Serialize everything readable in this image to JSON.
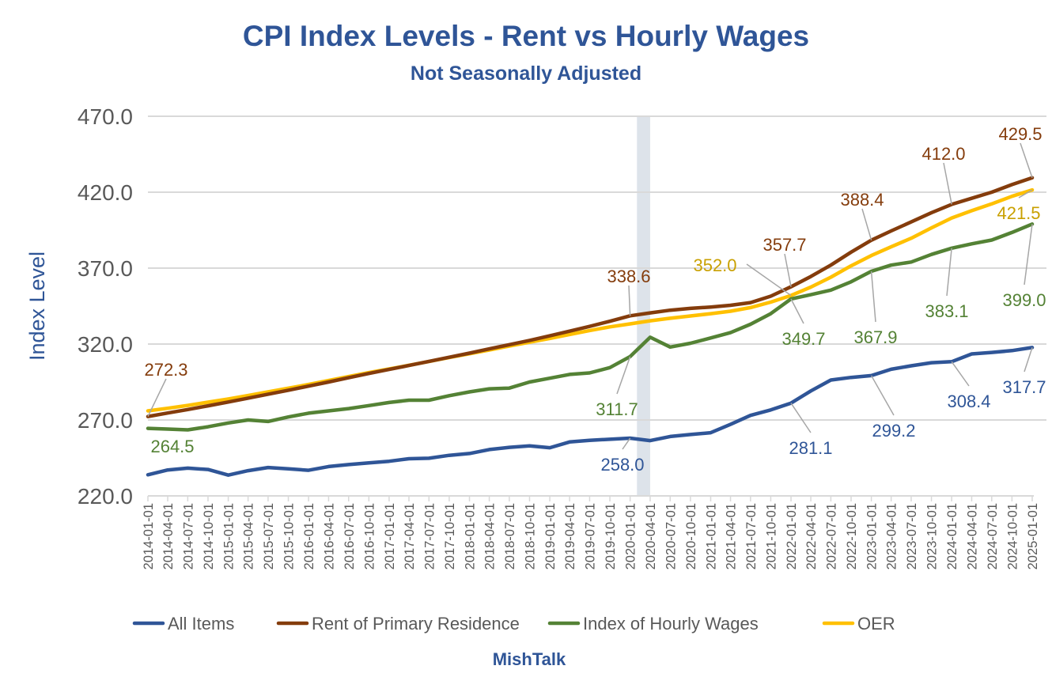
{
  "chart_data": {
    "type": "line",
    "title": "CPI Index Levels - Rent vs Hourly Wages",
    "subtitle": "Not Seasonally Adjusted",
    "ylabel": "Index Level",
    "xlabel": "",
    "source": "MishTalk",
    "ylim": [
      220,
      470
    ],
    "yticks": [
      "220.0",
      "270.0",
      "320.0",
      "370.0",
      "420.0",
      "470.0"
    ],
    "grid": true,
    "legend_position": "bottom",
    "shaded_period": [
      "2020-02-01",
      "2020-04-01"
    ],
    "x": [
      "2014-01-01",
      "2014-04-01",
      "2014-07-01",
      "2014-10-01",
      "2015-01-01",
      "2015-04-01",
      "2015-07-01",
      "2015-10-01",
      "2016-01-01",
      "2016-04-01",
      "2016-07-01",
      "2016-10-01",
      "2017-01-01",
      "2017-04-01",
      "2017-07-01",
      "2017-10-01",
      "2018-01-01",
      "2018-04-01",
      "2018-07-01",
      "2018-10-01",
      "2019-01-01",
      "2019-04-01",
      "2019-07-01",
      "2019-10-01",
      "2020-01-01",
      "2020-04-01",
      "2020-07-01",
      "2020-10-01",
      "2021-01-01",
      "2021-04-01",
      "2021-07-01",
      "2021-10-01",
      "2022-01-01",
      "2022-04-01",
      "2022-07-01",
      "2022-10-01",
      "2023-01-01",
      "2023-04-01",
      "2023-07-01",
      "2023-10-01",
      "2024-01-01",
      "2024-04-01",
      "2024-07-01",
      "2024-10-01",
      "2025-01-01"
    ],
    "series": [
      {
        "name": "All Items",
        "color": "#2F5597",
        "values": [
          233.9,
          237.1,
          238.3,
          237.4,
          233.7,
          236.6,
          238.7,
          237.8,
          236.9,
          239.3,
          240.6,
          241.7,
          242.8,
          244.5,
          244.8,
          246.7,
          247.9,
          250.5,
          252.0,
          252.9,
          251.7,
          255.5,
          256.6,
          257.3,
          258.0,
          256.4,
          259.1,
          260.4,
          261.6,
          267.1,
          273.0,
          276.6,
          281.1,
          289.1,
          296.3,
          298.0,
          299.2,
          303.4,
          305.7,
          307.7,
          308.4,
          313.5,
          314.5,
          315.7,
          317.7
        ]
      },
      {
        "name": "Rent of Primary Residence",
        "color": "#843C0C",
        "values": [
          272.3,
          274.6,
          276.9,
          279.3,
          281.8,
          284.4,
          287.0,
          289.6,
          292.3,
          295.0,
          297.8,
          300.6,
          303.3,
          305.9,
          308.6,
          311.3,
          314.0,
          316.8,
          319.6,
          322.4,
          325.4,
          328.5,
          331.6,
          335.0,
          338.6,
          340.5,
          342.3,
          343.5,
          344.4,
          345.5,
          347.3,
          351.5,
          357.7,
          364.5,
          372.0,
          380.5,
          388.4,
          394.5,
          400.4,
          406.5,
          412.0,
          416.0,
          420.0,
          425.0,
          429.5
        ]
      },
      {
        "name": "Index of Hourly Wages",
        "color": "#548235",
        "values": [
          264.5,
          264.0,
          263.5,
          265.5,
          268.0,
          270.0,
          269.0,
          272.0,
          274.5,
          276.0,
          277.5,
          279.5,
          281.5,
          283.0,
          283.0,
          286.0,
          288.5,
          290.5,
          291.0,
          295.0,
          297.5,
          300.0,
          301.0,
          304.5,
          311.7,
          324.5,
          318.0,
          320.5,
          324.0,
          327.5,
          333.0,
          340.0,
          349.7,
          352.5,
          355.5,
          361.0,
          367.9,
          372.0,
          374.0,
          379.0,
          383.1,
          386.0,
          388.5,
          393.5,
          399.0
        ]
      },
      {
        "name": "OER",
        "color": "#FFC000",
        "values": [
          276.0,
          277.7,
          279.6,
          281.7,
          283.8,
          286.1,
          288.5,
          290.9,
          293.4,
          296.0,
          298.6,
          301.2,
          303.6,
          306.0,
          308.5,
          311.1,
          313.6,
          316.1,
          318.7,
          321.2,
          323.7,
          326.3,
          328.9,
          331.3,
          333.3,
          335.3,
          337.0,
          338.5,
          340.0,
          341.6,
          344.0,
          347.6,
          352.0,
          357.5,
          364.0,
          371.5,
          378.3,
          384.0,
          389.7,
          396.5,
          403.0,
          407.8,
          412.3,
          417.3,
          421.5
        ]
      }
    ],
    "annotations": [
      {
        "series": 1,
        "date": "2014-01-01",
        "label": "272.3",
        "color": "#843C0C"
      },
      {
        "series": 2,
        "date": "2014-01-01",
        "label": "264.5",
        "color": "#548235"
      },
      {
        "series": 2,
        "date": "2020-01-01",
        "label": "311.7",
        "color": "#548235"
      },
      {
        "series": 0,
        "date": "2020-01-01",
        "label": "258.0",
        "color": "#2F5597"
      },
      {
        "series": 1,
        "date": "2020-01-01",
        "label": "338.6",
        "color": "#843C0C"
      },
      {
        "series": 3,
        "date": "2022-01-01",
        "label": "352.0",
        "color": "#C9A000"
      },
      {
        "series": 1,
        "date": "2022-01-01",
        "label": "357.7",
        "color": "#843C0C"
      },
      {
        "series": 2,
        "date": "2022-01-01",
        "label": "349.7",
        "color": "#548235"
      },
      {
        "series": 1,
        "date": "2023-01-01",
        "label": "388.4",
        "color": "#843C0C"
      },
      {
        "series": 2,
        "date": "2023-01-01",
        "label": "367.9",
        "color": "#548235"
      },
      {
        "series": 0,
        "date": "2022-01-01",
        "label": "281.1",
        "color": "#2F5597"
      },
      {
        "series": 0,
        "date": "2023-01-01",
        "label": "299.2",
        "color": "#2F5597"
      },
      {
        "series": 1,
        "date": "2024-01-01",
        "label": "412.0",
        "color": "#843C0C"
      },
      {
        "series": 2,
        "date": "2024-01-01",
        "label": "383.1",
        "color": "#548235"
      },
      {
        "series": 0,
        "date": "2024-01-01",
        "label": "308.4",
        "color": "#2F5597"
      },
      {
        "series": 1,
        "date": "2025-01-01",
        "label": "429.5",
        "color": "#843C0C"
      },
      {
        "series": 3,
        "date": "2025-01-01",
        "label": "421.5",
        "color": "#C9A000"
      },
      {
        "series": 2,
        "date": "2025-01-01",
        "label": "399.0",
        "color": "#548235"
      },
      {
        "series": 0,
        "date": "2025-01-01",
        "label": "317.7",
        "color": "#2F5597"
      }
    ]
  }
}
